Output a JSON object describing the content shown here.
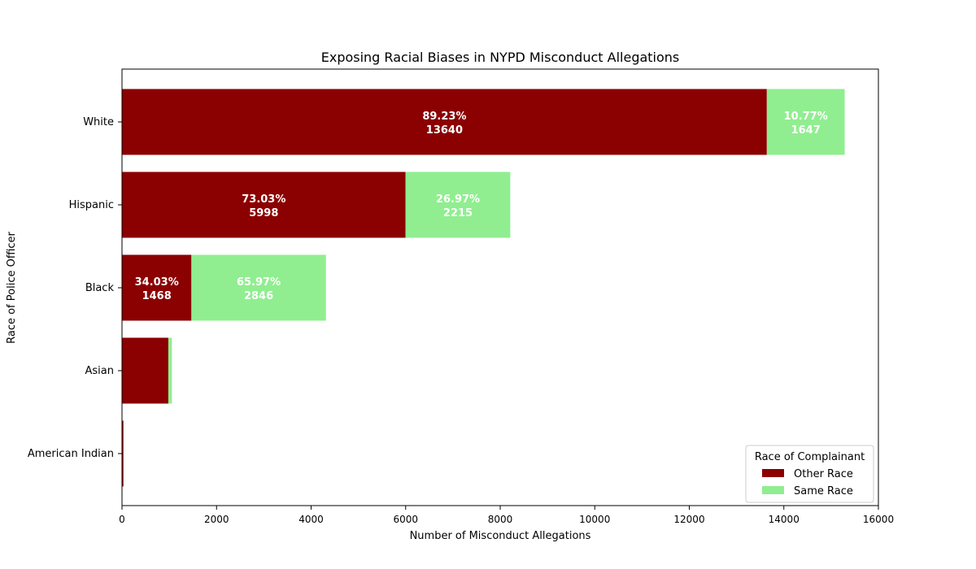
{
  "chart_data": {
    "type": "bar",
    "orientation": "horizontal",
    "stacked": true,
    "title": "Exposing Racial Biases in NYPD Misconduct Allegations",
    "xlabel": "Number of Misconduct Allegations",
    "ylabel": "Race of Police Officer",
    "xlim": [
      0,
      16000
    ],
    "xticks": [
      0,
      2000,
      4000,
      6000,
      8000,
      10000,
      12000,
      14000,
      16000
    ],
    "categories": [
      "White",
      "Hispanic",
      "Black",
      "Asian",
      "American Indian"
    ],
    "series": [
      {
        "name": "Other Race",
        "color": "#8b0000",
        "values": [
          13640,
          5998,
          1468,
          980,
          30
        ],
        "labels": [
          "89.23%\n13640",
          "73.03%\n5998",
          "34.03%\n1468",
          "",
          ""
        ]
      },
      {
        "name": "Same Race",
        "color": "#90ee90",
        "values": [
          1647,
          2215,
          2846,
          75,
          0
        ],
        "labels": [
          "10.77%\n1647",
          "26.97%\n2215",
          "65.97%\n2846",
          "",
          ""
        ]
      }
    ],
    "legend": {
      "title": "Race of Complainant",
      "position": "lower-right"
    },
    "grid": false
  }
}
